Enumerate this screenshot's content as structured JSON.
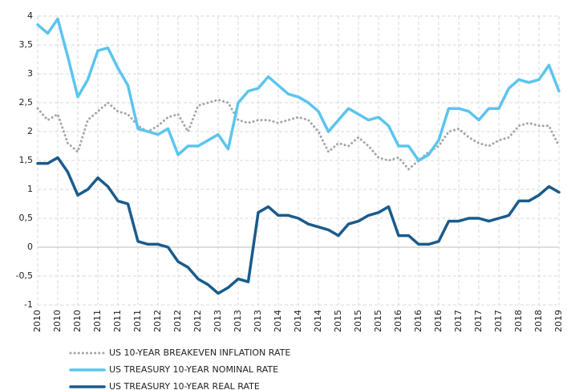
{
  "chart_data": {
    "type": "line",
    "categories": [
      "2010",
      null,
      "2010",
      null,
      "2010",
      null,
      "2011",
      null,
      "2011",
      null,
      "2011",
      null,
      "2012",
      null,
      "2012",
      null,
      "2012",
      null,
      "2013",
      null,
      "2013",
      null,
      "2013",
      null,
      "2014",
      null,
      "2014",
      null,
      "2014",
      null,
      "2015",
      null,
      "2015",
      null,
      "2015",
      null,
      "2016",
      null,
      "2016",
      null,
      "2016",
      null,
      "2017",
      null,
      "2017",
      null,
      "2017",
      null,
      "2018",
      null,
      "2018",
      null,
      "2019"
    ],
    "series": [
      {
        "name": "US 10-YEAR BREAKEVEN INFLATION RATE",
        "color": "#a6a6a6",
        "line_style": "dotted",
        "values": [
          2.4,
          2.2,
          2.3,
          1.8,
          1.65,
          2.2,
          2.35,
          2.5,
          2.35,
          2.3,
          2.1,
          2.0,
          2.1,
          2.25,
          2.3,
          2.0,
          2.45,
          2.5,
          2.55,
          2.5,
          2.2,
          2.15,
          2.2,
          2.2,
          2.15,
          2.2,
          2.25,
          2.2,
          2.0,
          1.65,
          1.8,
          1.75,
          1.9,
          1.75,
          1.55,
          1.5,
          1.55,
          1.35,
          1.5,
          1.65,
          1.75,
          2.0,
          2.05,
          1.9,
          1.8,
          1.75,
          1.85,
          1.9,
          2.1,
          2.15,
          2.1,
          2.1,
          1.75
        ]
      },
      {
        "name": "US TREASURY 10-YEAR NOMINAL RATE",
        "color": "#5bc5ee",
        "line_style": "solid",
        "values": [
          3.85,
          3.7,
          3.95,
          3.3,
          2.6,
          2.9,
          3.4,
          3.45,
          3.1,
          2.8,
          2.05,
          2.0,
          1.95,
          2.05,
          1.6,
          1.75,
          1.75,
          1.85,
          1.95,
          1.7,
          2.5,
          2.7,
          2.75,
          2.95,
          2.8,
          2.65,
          2.6,
          2.5,
          2.35,
          2.0,
          2.2,
          2.4,
          2.3,
          2.2,
          2.25,
          2.1,
          1.75,
          1.75,
          1.5,
          1.6,
          1.85,
          2.4,
          2.4,
          2.35,
          2.2,
          2.4,
          2.4,
          2.75,
          2.9,
          2.85,
          2.9,
          3.15,
          2.7
        ]
      },
      {
        "name": "US TREASURY 10-YEAR REAL RATE",
        "color": "#1a5b8c",
        "line_style": "solid",
        "values": [
          1.45,
          1.45,
          1.55,
          1.3,
          0.9,
          1.0,
          1.2,
          1.05,
          0.8,
          0.75,
          0.1,
          0.05,
          0.05,
          0.0,
          -0.25,
          -0.35,
          -0.55,
          -0.65,
          -0.8,
          -0.7,
          -0.55,
          -0.6,
          0.6,
          0.7,
          0.55,
          0.55,
          0.5,
          0.4,
          0.35,
          0.3,
          0.2,
          0.4,
          0.45,
          0.55,
          0.6,
          0.7,
          0.2,
          0.2,
          0.05,
          0.05,
          0.1,
          0.45,
          0.45,
          0.5,
          0.5,
          0.45,
          0.5,
          0.55,
          0.8,
          0.8,
          0.9,
          1.05,
          0.95
        ]
      }
    ],
    "ylim": [
      -1,
      4
    ],
    "yticks": [
      -1,
      {
        "value": -0.5,
        "label": "-0,5"
      },
      0,
      {
        "value": 0.5,
        "label": "0,5"
      },
      1,
      {
        "value": 1.5,
        "label": "1,5"
      },
      2,
      {
        "value": 2.5,
        "label": "2,5"
      },
      3,
      {
        "value": 3.5,
        "label": "3,5"
      },
      4
    ],
    "grid": true,
    "legend": "bottom"
  }
}
